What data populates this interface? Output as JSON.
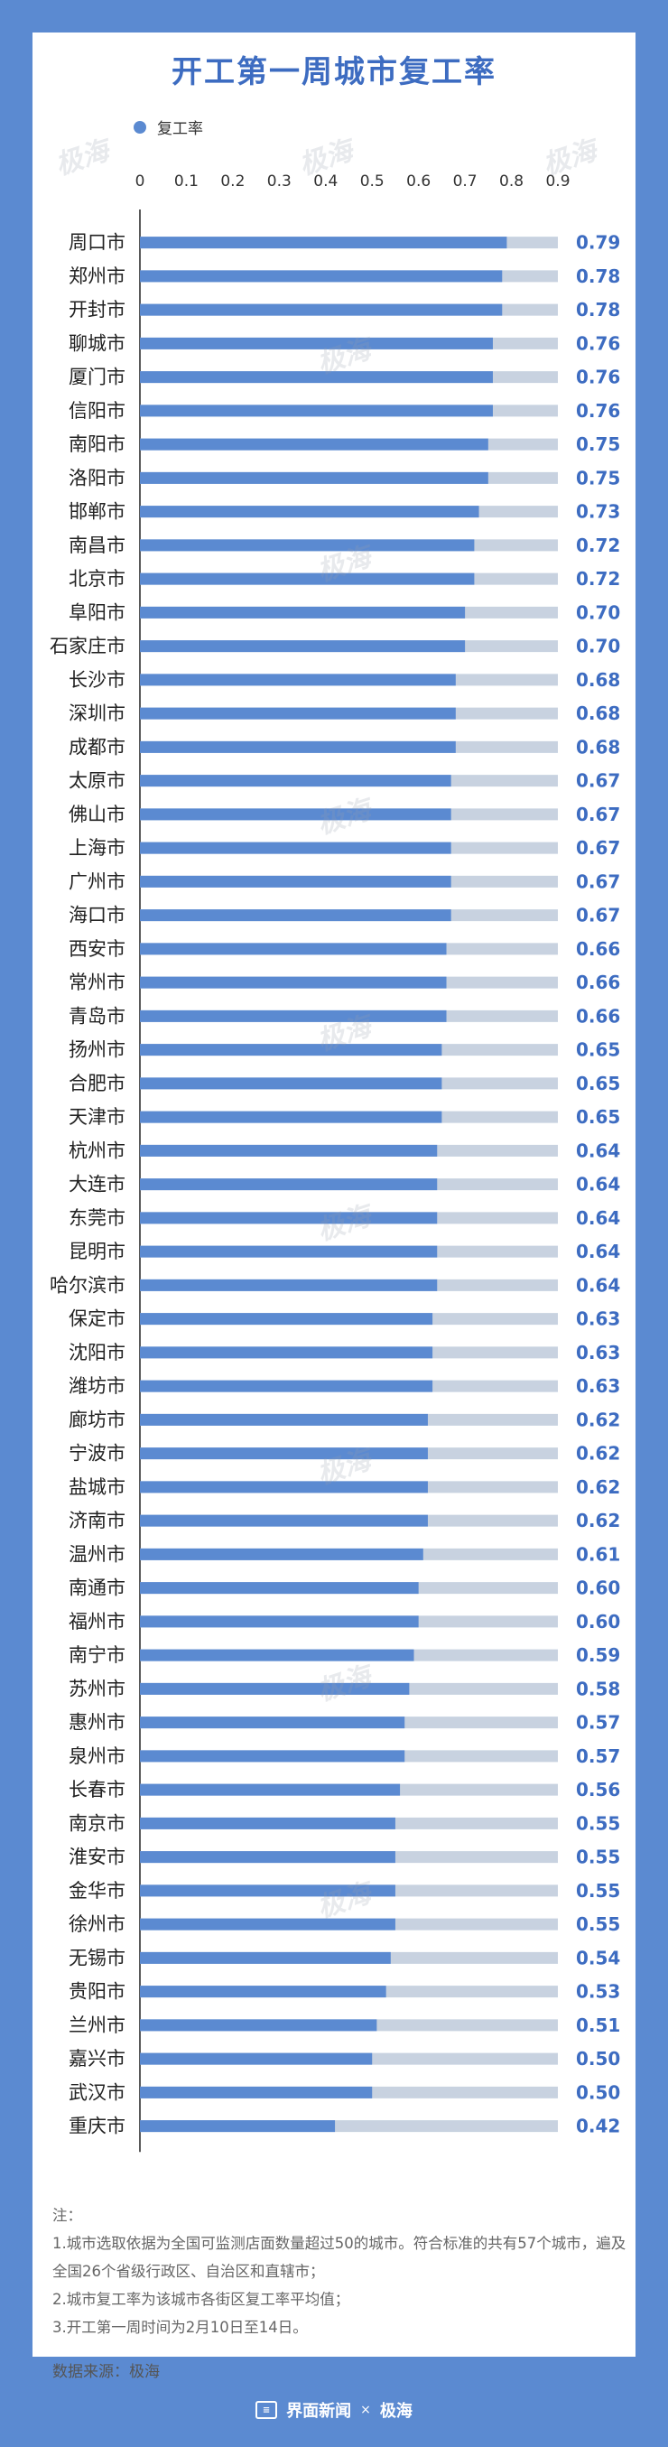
{
  "title": "开工第一周城市复工率",
  "footer": {
    "brand": "界面新闻",
    "sep": "×",
    "partner": "极海"
  },
  "notes": {
    "heading": "注：",
    "line1": "1.城市选取依据为全国可监测店面数量超过50的城市。符合标准的共有57个城市，遍及全国26个省级行政区、自治区和直辖市；",
    "line2": "2.城市复工率为该城市各街区复工率平均值；",
    "line3": "3.开工第一周时间为2月10日至14日。",
    "source": "数据来源：极海"
  },
  "colors": {
    "bar": "#5b8ad1",
    "track": "#c8d2e0",
    "value": "#3d6cc1",
    "background": "#5b8ad1"
  },
  "chart_data": {
    "type": "bar",
    "orientation": "horizontal",
    "xlim": [
      0,
      0.9
    ],
    "ticks": [
      "0",
      "0.1",
      "0.2",
      "0.3",
      "0.4",
      "0.5",
      "0.6",
      "0.7",
      "0.8",
      "0.9"
    ],
    "legend": {
      "label": "复工率",
      "position": "top-left"
    },
    "categories": [
      "周口市",
      "郑州市",
      "开封市",
      "聊城市",
      "厦门市",
      "信阳市",
      "南阳市",
      "洛阳市",
      "邯郸市",
      "南昌市",
      "北京市",
      "阜阳市",
      "石家庄市",
      "长沙市",
      "深圳市",
      "成都市",
      "太原市",
      "佛山市",
      "上海市",
      "广州市",
      "海口市",
      "西安市",
      "常州市",
      "青岛市",
      "扬州市",
      "合肥市",
      "天津市",
      "杭州市",
      "大连市",
      "东莞市",
      "昆明市",
      "哈尔滨市",
      "保定市",
      "沈阳市",
      "潍坊市",
      "廊坊市",
      "宁波市",
      "盐城市",
      "济南市",
      "温州市",
      "南通市",
      "福州市",
      "南宁市",
      "苏州市",
      "惠州市",
      "泉州市",
      "长春市",
      "南京市",
      "淮安市",
      "金华市",
      "徐州市",
      "无锡市",
      "贵阳市",
      "兰州市",
      "嘉兴市",
      "武汉市",
      "重庆市"
    ],
    "values": [
      0.79,
      0.78,
      0.78,
      0.76,
      0.76,
      0.76,
      0.75,
      0.75,
      0.73,
      0.72,
      0.72,
      0.7,
      0.7,
      0.68,
      0.68,
      0.68,
      0.67,
      0.67,
      0.67,
      0.67,
      0.67,
      0.66,
      0.66,
      0.66,
      0.65,
      0.65,
      0.65,
      0.64,
      0.64,
      0.64,
      0.64,
      0.64,
      0.63,
      0.63,
      0.63,
      0.62,
      0.62,
      0.62,
      0.62,
      0.61,
      0.6,
      0.6,
      0.59,
      0.58,
      0.57,
      0.57,
      0.56,
      0.55,
      0.55,
      0.55,
      0.55,
      0.54,
      0.53,
      0.51,
      0.5,
      0.5,
      0.42
    ],
    "labels": [
      "0.79",
      "0.78",
      "0.78",
      "0.76",
      "0.76",
      "0.76",
      "0.75",
      "0.75",
      "0.73",
      "0.72",
      "0.72",
      "0.70",
      "0.70",
      "0.68",
      "0.68",
      "0.68",
      "0.67",
      "0.67",
      "0.67",
      "0.67",
      "0.67",
      "0.66",
      "0.66",
      "0.66",
      "0.65",
      "0.65",
      "0.65",
      "0.64",
      "0.64",
      "0.64",
      "0.64",
      "0.64",
      "0.63",
      "0.63",
      "0.63",
      "0.62",
      "0.62",
      "0.62",
      "0.62",
      "0.61",
      "0.60",
      "0.60",
      "0.59",
      "0.58",
      "0.57",
      "0.57",
      "0.56",
      "0.55",
      "0.55",
      "0.55",
      "0.55",
      "0.54",
      "0.53",
      "0.51",
      "0.50",
      "0.50",
      "0.42"
    ],
    "grid": false
  }
}
